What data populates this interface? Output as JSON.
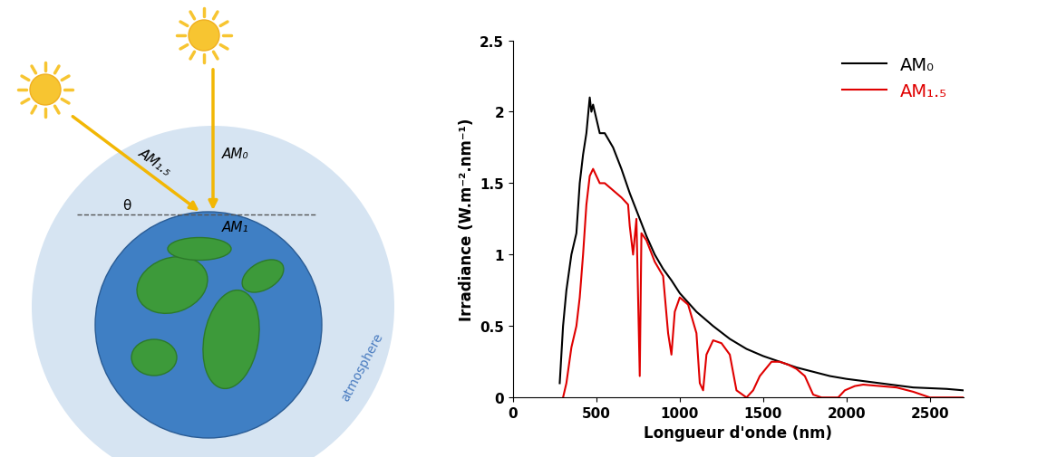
{
  "diagram": {
    "labels": {
      "zenith": "AM₀",
      "oblique": "AM₁.₅",
      "ground": "AM₁",
      "angle": "θ",
      "atmosphere": "atmosphere"
    }
  },
  "chart_data": {
    "type": "line",
    "x_label": "Longueur d'onde (nm)",
    "y_label": "Irradiance (W.m⁻².nm⁻¹)",
    "xlim": [
      0,
      2700
    ],
    "xticks": [
      0,
      500,
      1000,
      1500,
      2000,
      2500
    ],
    "ylim": [
      0,
      2.5
    ],
    "yticks": [
      0,
      0.5,
      1,
      1.5,
      2,
      2.5
    ],
    "legend": "upper right",
    "series": [
      {
        "name": "AM₀",
        "color": "#000000",
        "x": [
          280,
          300,
          320,
          350,
          380,
          400,
          420,
          440,
          460,
          470,
          480,
          500,
          520,
          550,
          600,
          650,
          700,
          750,
          800,
          850,
          900,
          950,
          1000,
          1100,
          1200,
          1300,
          1400,
          1500,
          1600,
          1700,
          1800,
          1900,
          2000,
          2200,
          2400,
          2600,
          2700
        ],
        "values": [
          0.1,
          0.5,
          0.75,
          1.0,
          1.15,
          1.5,
          1.7,
          1.85,
          2.1,
          2.0,
          2.05,
          1.95,
          1.85,
          1.85,
          1.75,
          1.6,
          1.43,
          1.28,
          1.13,
          1.0,
          0.9,
          0.82,
          0.73,
          0.6,
          0.5,
          0.41,
          0.34,
          0.29,
          0.25,
          0.21,
          0.18,
          0.15,
          0.13,
          0.1,
          0.07,
          0.06,
          0.05
        ]
      },
      {
        "name": "AM₁.₅",
        "color": "#e00000",
        "x": [
          300,
          320,
          350,
          380,
          400,
          420,
          440,
          460,
          480,
          500,
          520,
          550,
          600,
          650,
          690,
          700,
          720,
          740,
          760,
          770,
          800,
          850,
          900,
          930,
          950,
          970,
          1000,
          1050,
          1100,
          1120,
          1140,
          1160,
          1200,
          1250,
          1300,
          1340,
          1400,
          1440,
          1480,
          1550,
          1600,
          1650,
          1700,
          1750,
          1800,
          1850,
          1950,
          1990,
          2050,
          2100,
          2200,
          2300,
          2400,
          2450,
          2500,
          2700
        ],
        "values": [
          0,
          0.1,
          0.35,
          0.5,
          0.7,
          1.0,
          1.35,
          1.55,
          1.6,
          1.55,
          1.5,
          1.5,
          1.45,
          1.4,
          1.35,
          1.2,
          1.0,
          1.25,
          0.15,
          1.15,
          1.1,
          0.95,
          0.85,
          0.45,
          0.3,
          0.6,
          0.7,
          0.65,
          0.45,
          0.1,
          0.05,
          0.3,
          0.4,
          0.38,
          0.3,
          0.05,
          0,
          0.05,
          0.15,
          0.25,
          0.25,
          0.23,
          0.2,
          0.15,
          0.02,
          0,
          0,
          0.05,
          0.08,
          0.09,
          0.08,
          0.07,
          0.04,
          0.02,
          0,
          0
        ]
      }
    ]
  }
}
